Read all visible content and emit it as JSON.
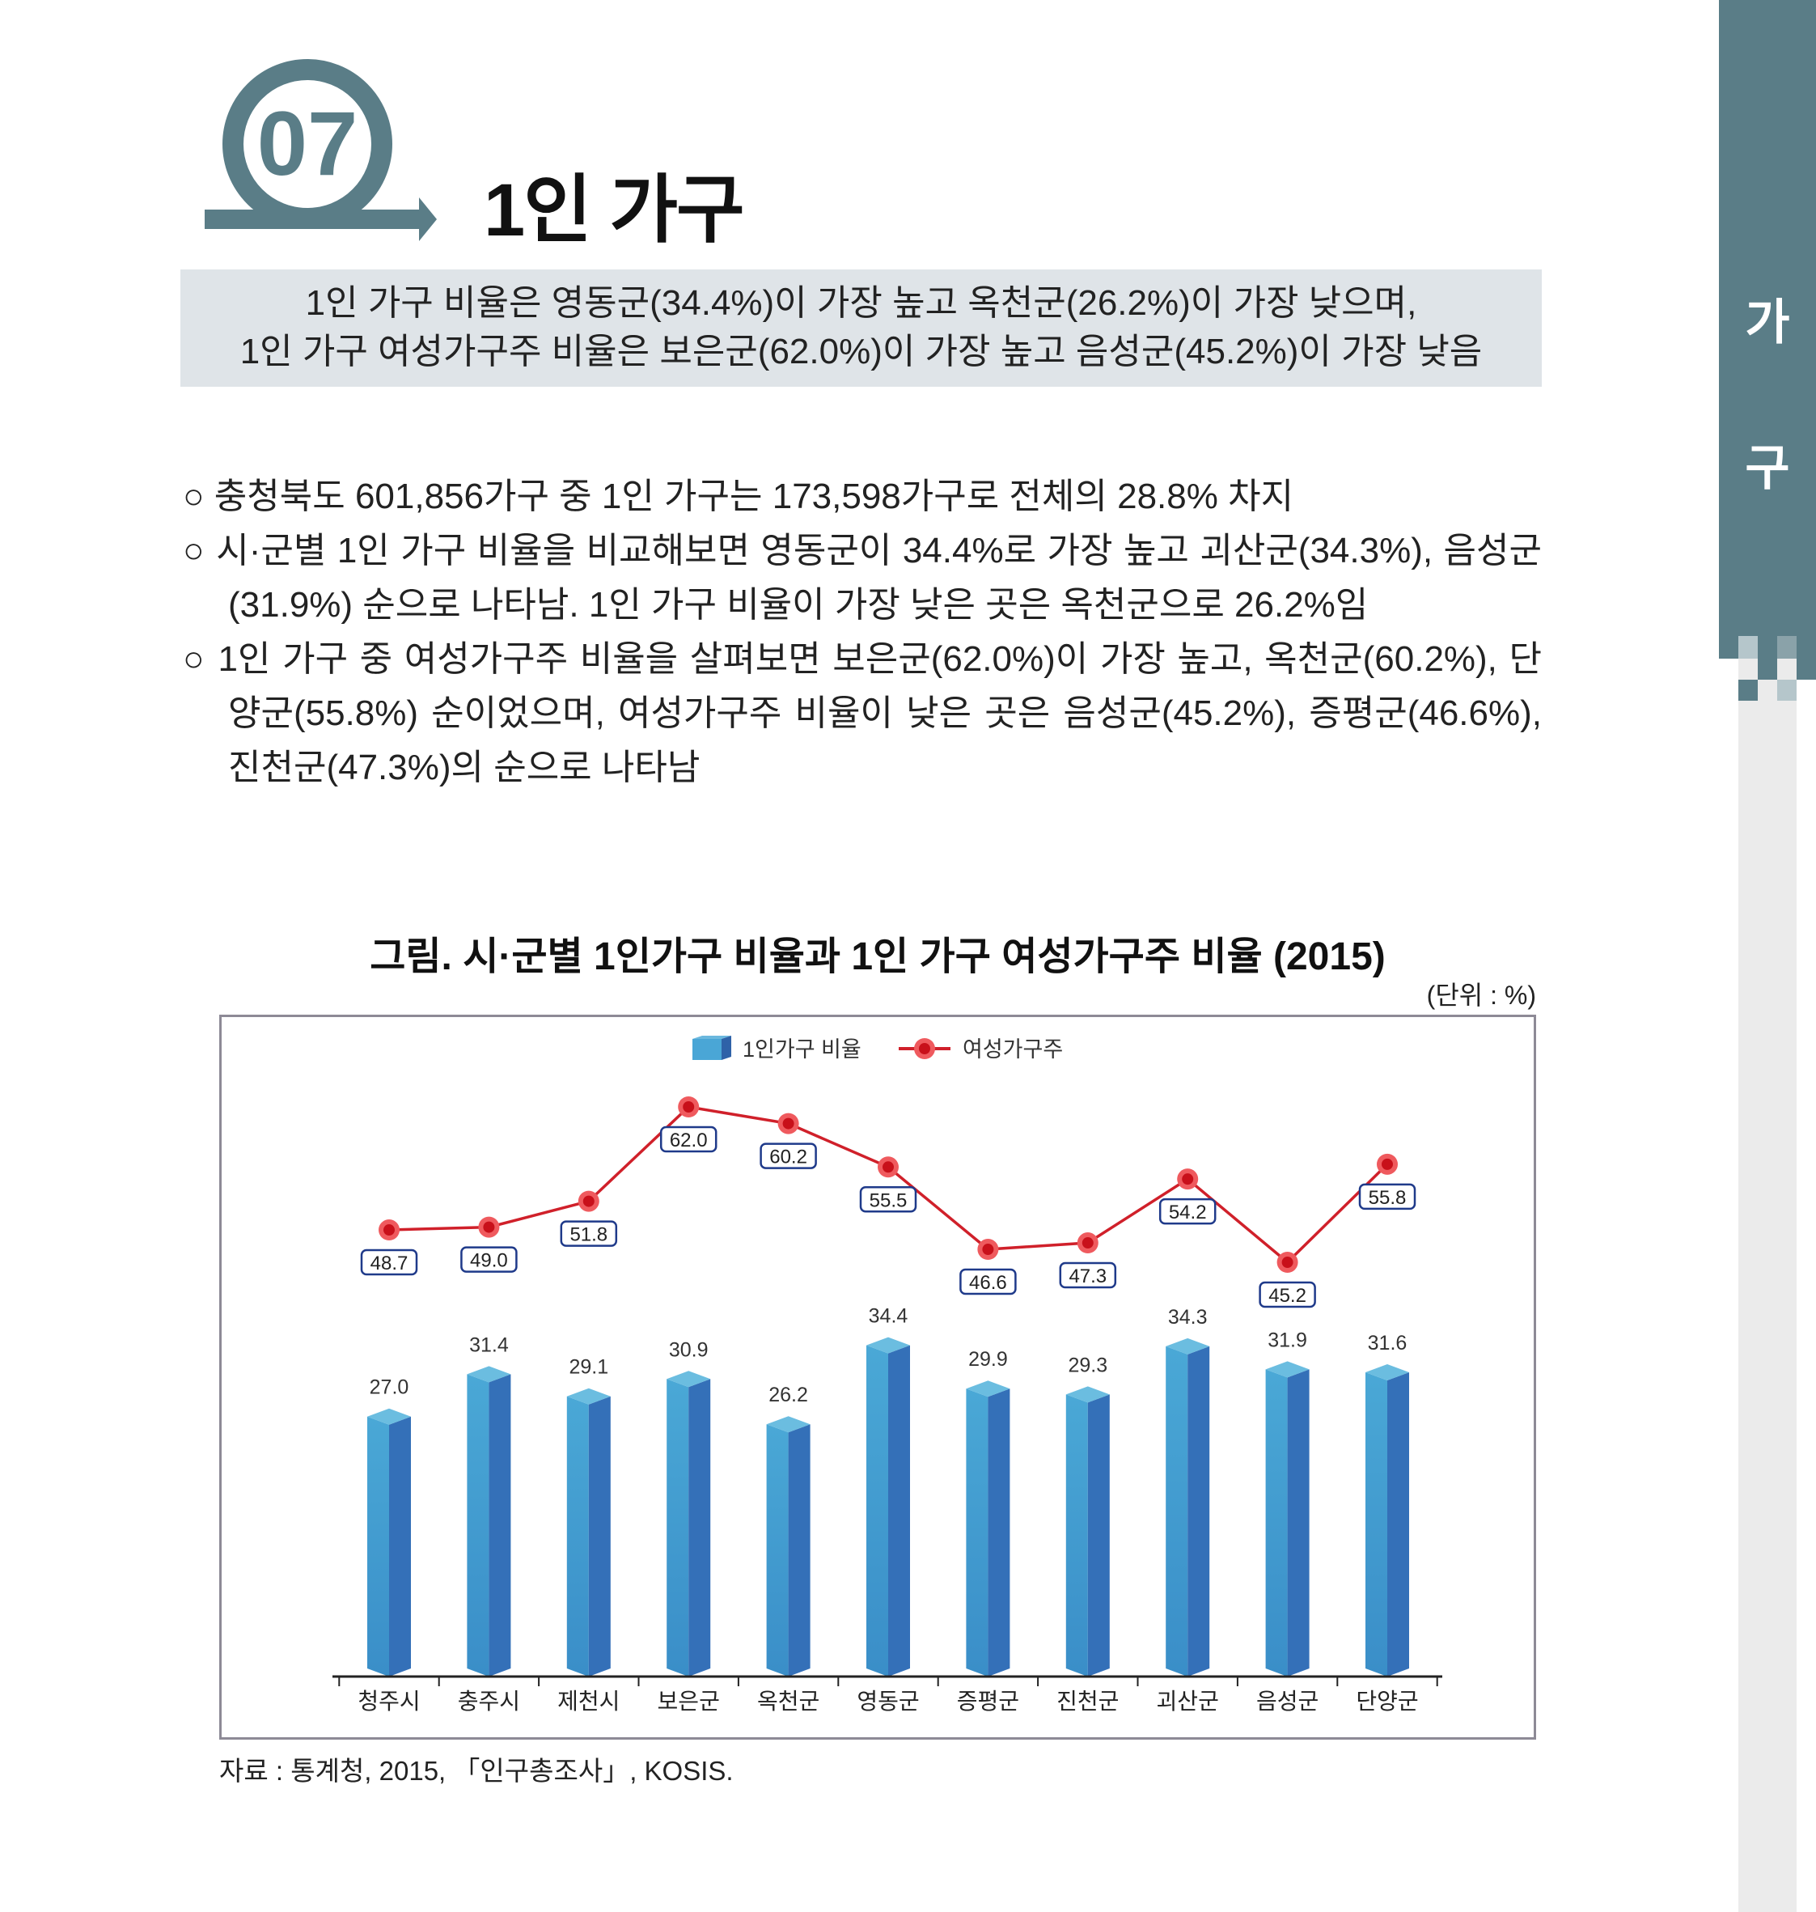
{
  "section": {
    "number": "07",
    "title": "1인 가구"
  },
  "side_tab": {
    "chars": [
      "가",
      "구"
    ],
    "color": "#5a7d87"
  },
  "summary": {
    "line1": "1인 가구 비율은 영동군(34.4%)이 가장 높고 옥천군(26.2%)이 가장 낮으며,",
    "line2": "1인 가구 여성가구주 비율은 보은군(62.0%)이 가장 높고 음성군(45.2%)이 가장 낮음"
  },
  "bullets": [
    "○ 충청북도 601,856가구 중 1인 가구는 173,598가구로 전체의 28.8% 차지",
    "○ 시·군별 1인 가구 비율을 비교해보면 영동군이 34.4%로 가장 높고 괴산군(34.3%), 음성군(31.9%) 순으로 나타남. 1인 가구 비율이 가장 낮은 곳은 옥천군으로 26.2%임",
    "○ 1인 가구 중 여성가구주 비율을 살펴보면 보은군(62.0%)이 가장 높고, 옥천군(60.2%), 단양군(55.8%) 순이었으며, 여성가구주 비율이 낮은 곳은 음성군(45.2%), 증평군(46.6%), 진천군(47.3%)의 순으로 나타남"
  ],
  "chart_title": "그림. 시·군별 1인가구 비율과 1인 가구 여성가구주 비율 (2015)",
  "unit": "(단위 : %)",
  "source": "자료 : 통계청, 2015, 「인구총조사」, KOSIS.",
  "chart_data": {
    "type": "bar+line",
    "categories": [
      "청주시",
      "충주시",
      "제천시",
      "보은군",
      "옥천군",
      "영동군",
      "증평군",
      "진천군",
      "괴산군",
      "음성군",
      "단양군"
    ],
    "series": [
      {
        "name": "1인가구 비율",
        "type": "bar",
        "color": "#3a8fcc",
        "values": [
          27.0,
          31.4,
          29.1,
          30.9,
          26.2,
          34.4,
          29.9,
          29.3,
          34.3,
          31.9,
          31.6
        ]
      },
      {
        "name": "여성가구주",
        "type": "line",
        "color": "#d0202a",
        "values": [
          48.7,
          49.0,
          51.8,
          62.0,
          60.2,
          55.5,
          46.6,
          47.3,
          54.2,
          45.2,
          55.8
        ]
      }
    ],
    "legend": "top-center",
    "grid": false
  }
}
